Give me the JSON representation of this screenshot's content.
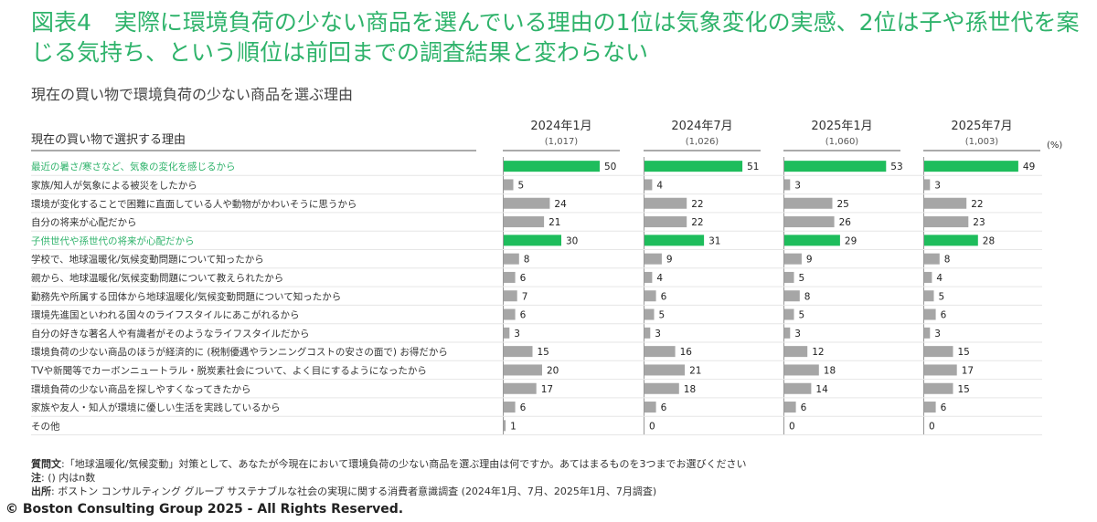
{
  "headline": "図表4　実際に環境負荷の少ない商品を選んでいる理由の1位は気象変化の実感、2位は子や孫世代を案じる気持ち、という順位は前回までの調査結果と変わらない",
  "subtitle": "現在の買い物で環境負荷の少ない商品を選ぶ理由",
  "footer": {
    "question_label": "質問文",
    "question_text": ":「地球温暖化/気候変動」対策として、あなたが今現在において環境負荷の少ない商品を選ぶ理由は何ですか。あてはまるものを3つまでお選びください",
    "note_label": "注",
    "note_text": ": () 内はn数",
    "source_label": "出所",
    "source_text": ": ボストン コンサルティング グループ サステナブルな社会の実現に関する消費者意識調査 (2024年1月、7月、2025年1月、7月調査)"
  },
  "copyright": "© Boston Consulting Group 2025 - All Rights Reserved.",
  "colors": {
    "accent": "#2fb36b",
    "bar_gray": "#a6a6a6",
    "bar_green": "#1ebd5c"
  },
  "chart_data": {
    "type": "bar",
    "orientation": "horizontal",
    "row_header": "現在の買い物で選択する理由",
    "unit": "(%)",
    "categories": [
      "最近の暑さ/寒さなど、気象の変化を感じるから",
      "家族/知人が気象による被災をしたから",
      "環境が変化することで困難に直面している人や動物がかわいそうに思うから",
      "自分の将来が心配だから",
      "子供世代や孫世代の将来が心配だから",
      "学校で、地球温暖化/気候変動問題について知ったから",
      "親から、地球温暖化/気候変動問題について教えられたから",
      "勤務先や所属する団体から地球温暖化/気候変動問題について知ったから",
      "環境先進国といわれる国々のライフスタイルにあこがれるから",
      "自分の好きな著名人や有識者がそのようなライフスタイルだから",
      "環境負荷の少ない商品のほうが経済的に (税制優遇やランニングコストの安さの面で) お得だから",
      "TVや新聞等でカーボンニュートラル・脱炭素社会について、よく目にするようになったから",
      "環境負荷の少ない商品を探しやすくなってきたから",
      "家族や友人・知人が環境に優しい生活を実践しているから",
      "その他"
    ],
    "highlighted": [
      0,
      4
    ],
    "series": [
      {
        "name": "2024年1月",
        "n": "(1,017)",
        "values": [
          50,
          5,
          24,
          21,
          30,
          8,
          6,
          7,
          6,
          3,
          15,
          20,
          17,
          6,
          1
        ]
      },
      {
        "name": "2024年7月",
        "n": "(1,026)",
        "values": [
          51,
          4,
          22,
          22,
          31,
          9,
          4,
          6,
          5,
          3,
          16,
          21,
          18,
          6,
          0
        ]
      },
      {
        "name": "2025年1月",
        "n": "(1,060)",
        "values": [
          53,
          3,
          25,
          26,
          29,
          9,
          5,
          8,
          5,
          3,
          12,
          18,
          14,
          6,
          0
        ]
      },
      {
        "name": "2025年7月",
        "n": "(1,003)",
        "values": [
          49,
          3,
          22,
          23,
          28,
          8,
          4,
          5,
          6,
          3,
          15,
          17,
          15,
          6,
          0
        ]
      }
    ]
  }
}
